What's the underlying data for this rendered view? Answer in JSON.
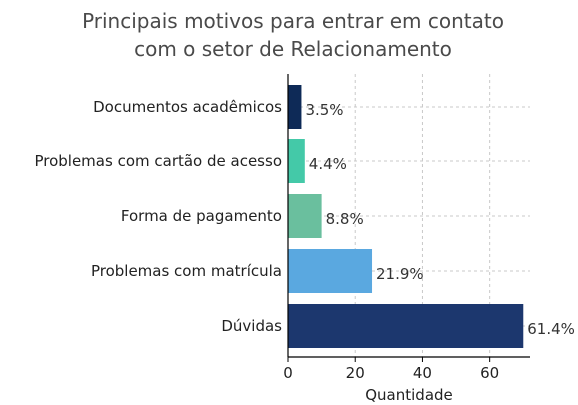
{
  "chart_data": {
    "type": "bar",
    "orientation": "horizontal",
    "title_lines": [
      "Principais motivos para entrar em contato",
      "com o setor de Relacionamento"
    ],
    "xlabel": "Quantidade",
    "ylabel": "",
    "xlim": [
      0,
      72
    ],
    "xticks": [
      0,
      20,
      40,
      60
    ],
    "grid": true,
    "categories": [
      "Documentos acadêmicos",
      "Problemas com cartão de acesso",
      "Forma de pagamento",
      "Problemas com matrícula",
      "Dúvidas"
    ],
    "values": [
      4,
      5,
      10,
      25,
      70
    ],
    "data_labels": [
      "3.5%",
      "4.4%",
      "8.8%",
      "21.9%",
      "61.4%"
    ],
    "colors": [
      "#0e2a57",
      "#44c9a8",
      "#6abf9e",
      "#5aa8e0",
      "#1c376e"
    ]
  }
}
